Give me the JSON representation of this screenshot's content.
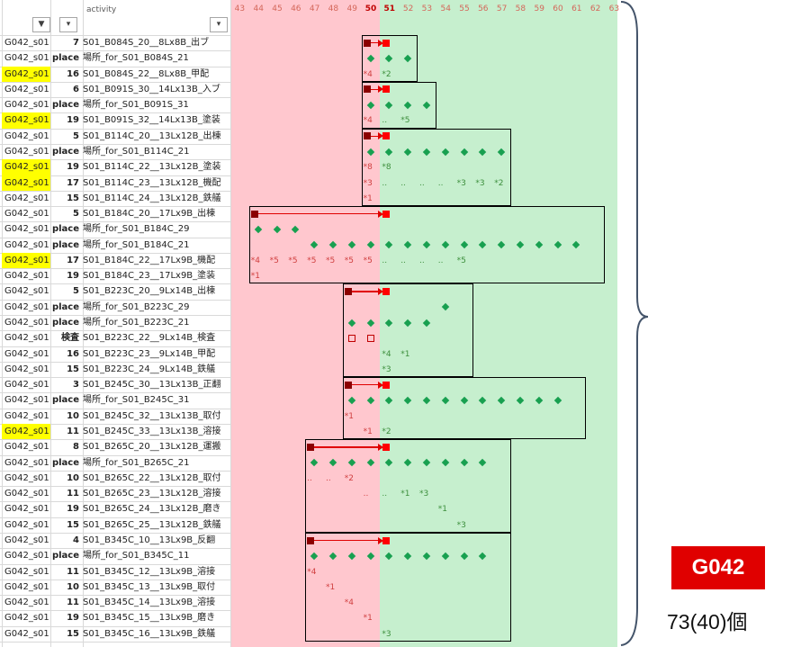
{
  "header": {
    "activity_label": "activity",
    "filter_icon": "funnel-filter-icon",
    "dropdown_icon": "dropdown-arrow-icon",
    "day_columns": [
      "43",
      "44",
      "45",
      "46",
      "47",
      "48",
      "49",
      "50",
      "51",
      "52",
      "53",
      "54",
      "55",
      "56",
      "57",
      "58",
      "59",
      "60",
      "61",
      "62",
      "63"
    ],
    "highlight_days": [
      "50",
      "51"
    ]
  },
  "rows": [
    {
      "group": "G042_s01",
      "hl": false,
      "num": "7",
      "activity": "S01_B084S_20__8Lx8B_出ブ"
    },
    {
      "group": "G042_s01",
      "hl": false,
      "num": "place",
      "activity": "場所_for_S01_B084S_21"
    },
    {
      "group": "G042_s01",
      "hl": true,
      "num": "16",
      "activity": "S01_B084S_22__8Lx8B_甲配"
    },
    {
      "group": "G042_s01",
      "hl": false,
      "num": "6",
      "activity": "S01_B091S_30__14Lx13B_入ブ"
    },
    {
      "group": "G042_s01",
      "hl": false,
      "num": "place",
      "activity": "場所_for_S01_B091S_31"
    },
    {
      "group": "G042_s01",
      "hl": true,
      "num": "19",
      "activity": "S01_B091S_32__14Lx13B_塗装"
    },
    {
      "group": "G042_s01",
      "hl": false,
      "num": "5",
      "activity": "S01_B114C_20__13Lx12B_出棟"
    },
    {
      "group": "G042_s01",
      "hl": false,
      "num": "place",
      "activity": "場所_for_S01_B114C_21"
    },
    {
      "group": "G042_s01",
      "hl": true,
      "num": "19",
      "activity": "S01_B114C_22__13Lx12B_塗装"
    },
    {
      "group": "G042_s01",
      "hl": true,
      "num": "17",
      "activity": "S01_B114C_23__13Lx12B_機配"
    },
    {
      "group": "G042_s01",
      "hl": false,
      "num": "15",
      "activity": "S01_B114C_24__13Lx12B_鉄艤"
    },
    {
      "group": "G042_s01",
      "hl": false,
      "num": "5",
      "activity": "S01_B184C_20__17Lx9B_出棟"
    },
    {
      "group": "G042_s01",
      "hl": false,
      "num": "place",
      "activity": "場所_for_S01_B184C_29"
    },
    {
      "group": "G042_s01",
      "hl": false,
      "num": "place",
      "activity": "場所_for_S01_B184C_21"
    },
    {
      "group": "G042_s01",
      "hl": true,
      "num": "17",
      "activity": "S01_B184C_22__17Lx9B_機配"
    },
    {
      "group": "G042_s01",
      "hl": false,
      "num": "19",
      "activity": "S01_B184C_23__17Lx9B_塗装"
    },
    {
      "group": "G042_s01",
      "hl": false,
      "num": "5",
      "activity": "S01_B223C_20__9Lx14B_出棟"
    },
    {
      "group": "G042_s01",
      "hl": false,
      "num": "place",
      "activity": "場所_for_S01_B223C_29"
    },
    {
      "group": "G042_s01",
      "hl": false,
      "num": "place",
      "activity": "場所_for_S01_B223C_21"
    },
    {
      "group": "G042_s01",
      "hl": false,
      "num": "検査",
      "activity": "S01_B223C_22__9Lx14B_検査"
    },
    {
      "group": "G042_s01",
      "hl": false,
      "num": "16",
      "activity": "S01_B223C_23__9Lx14B_甲配"
    },
    {
      "group": "G042_s01",
      "hl": false,
      "num": "15",
      "activity": "S01_B223C_24__9Lx14B_鉄艤"
    },
    {
      "group": "G042_s01",
      "hl": false,
      "num": "3",
      "activity": "S01_B245C_30__13Lx13B_正翻"
    },
    {
      "group": "G042_s01",
      "hl": false,
      "num": "place",
      "activity": "場所_for_S01_B245C_31"
    },
    {
      "group": "G042_s01",
      "hl": false,
      "num": "10",
      "activity": "S01_B245C_32__13Lx13B_取付"
    },
    {
      "group": "G042_s01",
      "hl": true,
      "num": "11",
      "activity": "S01_B245C_33__13Lx13B_溶接"
    },
    {
      "group": "G042_s01",
      "hl": false,
      "num": "8",
      "activity": "S01_B265C_20__13Lx12B_運搬"
    },
    {
      "group": "G042_s01",
      "hl": false,
      "num": "place",
      "activity": "場所_for_S01_B265C_21"
    },
    {
      "group": "G042_s01",
      "hl": false,
      "num": "10",
      "activity": "S01_B265C_22__13Lx12B_取付"
    },
    {
      "group": "G042_s01",
      "hl": false,
      "num": "11",
      "activity": "S01_B265C_23__13Lx12B_溶接"
    },
    {
      "group": "G042_s01",
      "hl": false,
      "num": "19",
      "activity": "S01_B265C_24__13Lx12B_磨き"
    },
    {
      "group": "G042_s01",
      "hl": false,
      "num": "15",
      "activity": "S01_B265C_25__13Lx12B_鉄艤"
    },
    {
      "group": "G042_s01",
      "hl": false,
      "num": "4",
      "activity": "S01_B345C_10__13Lx9B_反翻"
    },
    {
      "group": "G042_s01",
      "hl": false,
      "num": "place",
      "activity": "場所_for_S01_B345C_11"
    },
    {
      "group": "G042_s01",
      "hl": false,
      "num": "11",
      "activity": "S01_B345C_12__13Lx9B_溶接"
    },
    {
      "group": "G042_s01",
      "hl": false,
      "num": "10",
      "activity": "S01_B345C_13__13Lx9B_取付"
    },
    {
      "group": "G042_s01",
      "hl": false,
      "num": "11",
      "activity": "S01_B345C_14__13Lx9B_溶接"
    },
    {
      "group": "G042_s01",
      "hl": false,
      "num": "19",
      "activity": "S01_B345C_15__13Lx9B_磨き"
    },
    {
      "group": "G042_s01",
      "hl": false,
      "num": "15",
      "activity": "S01_B345C_16__13Lx9B_鉄艤"
    }
  ],
  "gantt": {
    "boxes": [
      {
        "row0": 0,
        "row1": 2,
        "d0": 50,
        "d1": 52
      },
      {
        "row0": 3,
        "row1": 5,
        "d0": 50,
        "d1": 53
      },
      {
        "row0": 6,
        "row1": 10,
        "d0": 50,
        "d1": 57
      },
      {
        "row0": 11,
        "row1": 15,
        "d0": 44,
        "d1": 62
      },
      {
        "row0": 16,
        "row1": 21,
        "d0": 49,
        "d1": 55
      },
      {
        "row0": 22,
        "row1": 25,
        "d0": 49,
        "d1": 61
      },
      {
        "row0": 26,
        "row1": 31,
        "d0": 47,
        "d1": 57
      },
      {
        "row0": 32,
        "row1": 38,
        "d0": 47,
        "d1": 57
      }
    ],
    "arrows": [
      {
        "row": 0,
        "from": 50,
        "to": 51
      },
      {
        "row": 3,
        "from": 50,
        "to": 51
      },
      {
        "row": 6,
        "from": 50,
        "to": 51
      },
      {
        "row": 11,
        "from": 44,
        "to": 51
      },
      {
        "row": 16,
        "from": 49,
        "to": 51
      },
      {
        "row": 22,
        "from": 49,
        "to": 51
      },
      {
        "row": 26,
        "from": 47,
        "to": 51
      },
      {
        "row": 32,
        "from": 47,
        "to": 51
      }
    ],
    "diamonds": [
      {
        "row": 1,
        "days": [
          50,
          51,
          52
        ]
      },
      {
        "row": 4,
        "days": [
          50,
          51,
          52,
          53
        ]
      },
      {
        "row": 7,
        "days": [
          50,
          51,
          52,
          53,
          54,
          55,
          56,
          57
        ]
      },
      {
        "row": 12,
        "days": [
          44,
          45,
          46
        ]
      },
      {
        "row": 13,
        "days": [
          47,
          48,
          49,
          50,
          51,
          52,
          53,
          54,
          55,
          56,
          57,
          58,
          59,
          60,
          61
        ]
      },
      {
        "row": 17,
        "days": [
          54
        ]
      },
      {
        "row": 18,
        "days": [
          49,
          50,
          51,
          52,
          53
        ]
      },
      {
        "row": 23,
        "days": [
          49,
          50,
          51,
          52,
          53,
          54,
          55,
          56,
          57,
          58,
          59,
          60
        ]
      },
      {
        "row": 27,
        "days": [
          47,
          48,
          49,
          50,
          51,
          52,
          53,
          54,
          55,
          56
        ]
      },
      {
        "row": 33,
        "days": [
          47,
          48,
          49,
          50,
          51,
          52,
          53,
          54,
          55,
          56
        ]
      }
    ],
    "hollow_squares": [
      {
        "row": 19,
        "days": [
          49,
          50
        ]
      }
    ],
    "marks": [
      {
        "row": 2,
        "day": 50,
        "text": "*4"
      },
      {
        "row": 2,
        "day": 51,
        "text": "*2"
      },
      {
        "row": 5,
        "day": 50,
        "text": "*4"
      },
      {
        "row": 5,
        "day": 51,
        "text": ".."
      },
      {
        "row": 5,
        "day": 52,
        "text": "*5"
      },
      {
        "row": 8,
        "day": 50,
        "text": "*8"
      },
      {
        "row": 8,
        "day": 51,
        "text": "*8"
      },
      {
        "row": 9,
        "day": 50,
        "text": "*3"
      },
      {
        "row": 9,
        "day": 51,
        "text": ".."
      },
      {
        "row": 9,
        "day": 52,
        "text": ".."
      },
      {
        "row": 9,
        "day": 53,
        "text": ".."
      },
      {
        "row": 9,
        "day": 54,
        "text": ".."
      },
      {
        "row": 9,
        "day": 55,
        "text": "*3"
      },
      {
        "row": 9,
        "day": 56,
        "text": "*3"
      },
      {
        "row": 9,
        "day": 57,
        "text": "*2"
      },
      {
        "row": 10,
        "day": 50,
        "text": "*1"
      },
      {
        "row": 14,
        "day": 44,
        "text": "*4"
      },
      {
        "row": 14,
        "day": 45,
        "text": "*5"
      },
      {
        "row": 14,
        "day": 46,
        "text": "*5"
      },
      {
        "row": 14,
        "day": 47,
        "text": "*5"
      },
      {
        "row": 14,
        "day": 48,
        "text": "*5"
      },
      {
        "row": 14,
        "day": 49,
        "text": "*5"
      },
      {
        "row": 14,
        "day": 50,
        "text": "*5"
      },
      {
        "row": 14,
        "day": 51,
        "text": ".."
      },
      {
        "row": 14,
        "day": 52,
        "text": ".."
      },
      {
        "row": 14,
        "day": 53,
        "text": ".."
      },
      {
        "row": 14,
        "day": 54,
        "text": ".."
      },
      {
        "row": 14,
        "day": 55,
        "text": "*5"
      },
      {
        "row": 15,
        "day": 44,
        "text": "*1"
      },
      {
        "row": 20,
        "day": 51,
        "text": "*4"
      },
      {
        "row": 20,
        "day": 52,
        "text": "*1"
      },
      {
        "row": 21,
        "day": 51,
        "text": "*3"
      },
      {
        "row": 24,
        "day": 49,
        "text": "*1"
      },
      {
        "row": 25,
        "day": 50,
        "text": "*1"
      },
      {
        "row": 25,
        "day": 51,
        "text": "*2"
      },
      {
        "row": 28,
        "day": 47,
        "text": ".."
      },
      {
        "row": 28,
        "day": 48,
        "text": ".."
      },
      {
        "row": 28,
        "day": 49,
        "text": "*2"
      },
      {
        "row": 29,
        "day": 50,
        "text": ".."
      },
      {
        "row": 29,
        "day": 51,
        "text": ".."
      },
      {
        "row": 29,
        "day": 52,
        "text": "*1"
      },
      {
        "row": 29,
        "day": 53,
        "text": "*3"
      },
      {
        "row": 30,
        "day": 54,
        "text": "*1"
      },
      {
        "row": 31,
        "day": 55,
        "text": "*3"
      },
      {
        "row": 34,
        "day": 47,
        "text": "*4"
      },
      {
        "row": 35,
        "day": 48,
        "text": "*1"
      },
      {
        "row": 36,
        "day": 49,
        "text": "*4"
      },
      {
        "row": 37,
        "day": 50,
        "text": "*1"
      },
      {
        "row": 38,
        "day": 51,
        "text": "*3"
      }
    ]
  },
  "summary": {
    "brace_icon": "right-curly-brace",
    "group_tag": "G042",
    "count_text": "73(40)個",
    "tag_color": "#e00000"
  }
}
